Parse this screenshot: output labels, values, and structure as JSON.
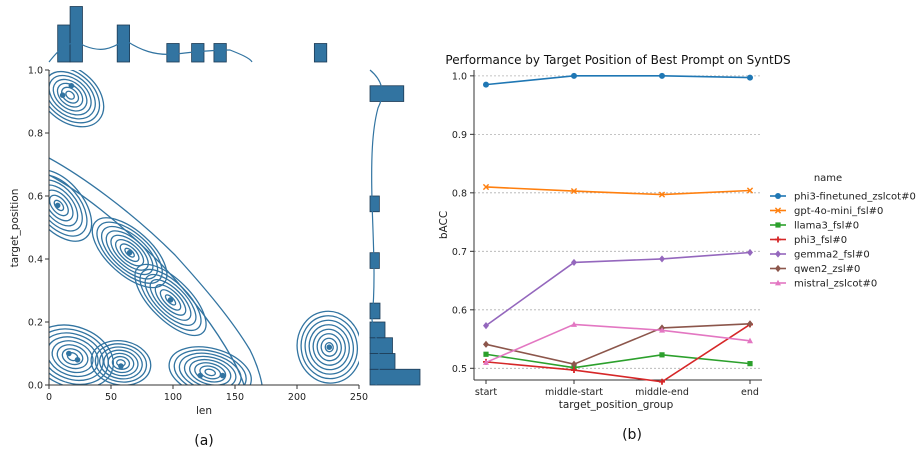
{
  "panels": {
    "a_caption": "(a)",
    "b_caption": "(b)"
  },
  "chart_data": [
    {
      "type": "scatter",
      "subtype": "jointplot-kde",
      "xlabel": "len",
      "ylabel": "target_position",
      "xlim": [
        0,
        250
      ],
      "ylim": [
        0.0,
        1.0
      ],
      "xticks": [
        "0",
        "50",
        "100",
        "150",
        "200",
        "250"
      ],
      "yticks": [
        "0.0",
        "0.2",
        "0.4",
        "0.6",
        "0.8",
        "1.0"
      ],
      "color": "#3274a1",
      "points": [
        {
          "x": 11,
          "y": 0.92
        },
        {
          "x": 18,
          "y": 0.95
        },
        {
          "x": 7,
          "y": 0.57
        },
        {
          "x": 65,
          "y": 0.42
        },
        {
          "x": 98,
          "y": 0.27
        },
        {
          "x": 16,
          "y": 0.1
        },
        {
          "x": 23,
          "y": 0.08
        },
        {
          "x": 58,
          "y": 0.06
        },
        {
          "x": 122,
          "y": 0.03
        },
        {
          "x": 140,
          "y": 0.03
        },
        {
          "x": 226,
          "y": 0.12
        }
      ],
      "top_hist": {
        "bins": [
          [
            7,
            17,
            2
          ],
          [
            17,
            27,
            3
          ],
          [
            55,
            65,
            2
          ],
          [
            95,
            105,
            1
          ],
          [
            115,
            125,
            1
          ],
          [
            133,
            143,
            1
          ],
          [
            214,
            224,
            1
          ]
        ]
      },
      "right_hist": {
        "bins": [
          [
            0.0,
            0.05,
            4
          ],
          [
            0.05,
            0.1,
            2
          ],
          [
            0.1,
            0.15,
            1.8
          ],
          [
            0.15,
            0.2,
            1.2
          ],
          [
            0.21,
            0.26,
            0.8
          ],
          [
            0.37,
            0.42,
            0.75
          ],
          [
            0.55,
            0.6,
            0.75
          ],
          [
            0.9,
            0.95,
            2.7
          ]
        ]
      }
    },
    {
      "type": "line",
      "title": "Performance by Target Position of  Best Prompt on SyntDS",
      "xlabel": "target_position_group",
      "ylabel": "bACC",
      "categories": [
        "start",
        "middle-start",
        "middle-end",
        "end"
      ],
      "ylim": [
        0.48,
        1.01
      ],
      "yticks": [
        "0.5",
        "0.6",
        "0.7",
        "0.8",
        "0.9",
        "1.0"
      ],
      "grid": true,
      "legend_title": "name",
      "legend_placement": "right",
      "series": [
        {
          "name": "phi3-finetuned_zslcot#0",
          "color": "#1f77b4",
          "marker": "circle",
          "values": [
            0.985,
            1.0,
            1.0,
            0.997
          ]
        },
        {
          "name": "gpt-4o-mini_fsl#0",
          "color": "#ff7f0e",
          "marker": "x",
          "values": [
            0.81,
            0.803,
            0.797,
            0.804
          ]
        },
        {
          "name": "llama3_fsl#0",
          "color": "#2ca02c",
          "marker": "square",
          "values": [
            0.524,
            0.501,
            0.523,
            0.508
          ]
        },
        {
          "name": "phi3_fsl#0",
          "color": "#d62728",
          "marker": "plus",
          "values": [
            0.511,
            0.497,
            0.477,
            0.575
          ]
        },
        {
          "name": "gemma2_fsl#0",
          "color": "#9467bd",
          "marker": "diamond",
          "values": [
            0.573,
            0.681,
            0.687,
            0.698
          ]
        },
        {
          "name": "qwen2_zsl#0",
          "color": "#8c564b",
          "marker": "diamond",
          "values": [
            0.541,
            0.507,
            0.569,
            0.576
          ]
        },
        {
          "name": "mistral_zslcot#0",
          "color": "#e377c2",
          "marker": "triangle",
          "values": [
            0.51,
            0.575,
            0.565,
            0.547
          ]
        }
      ]
    }
  ]
}
